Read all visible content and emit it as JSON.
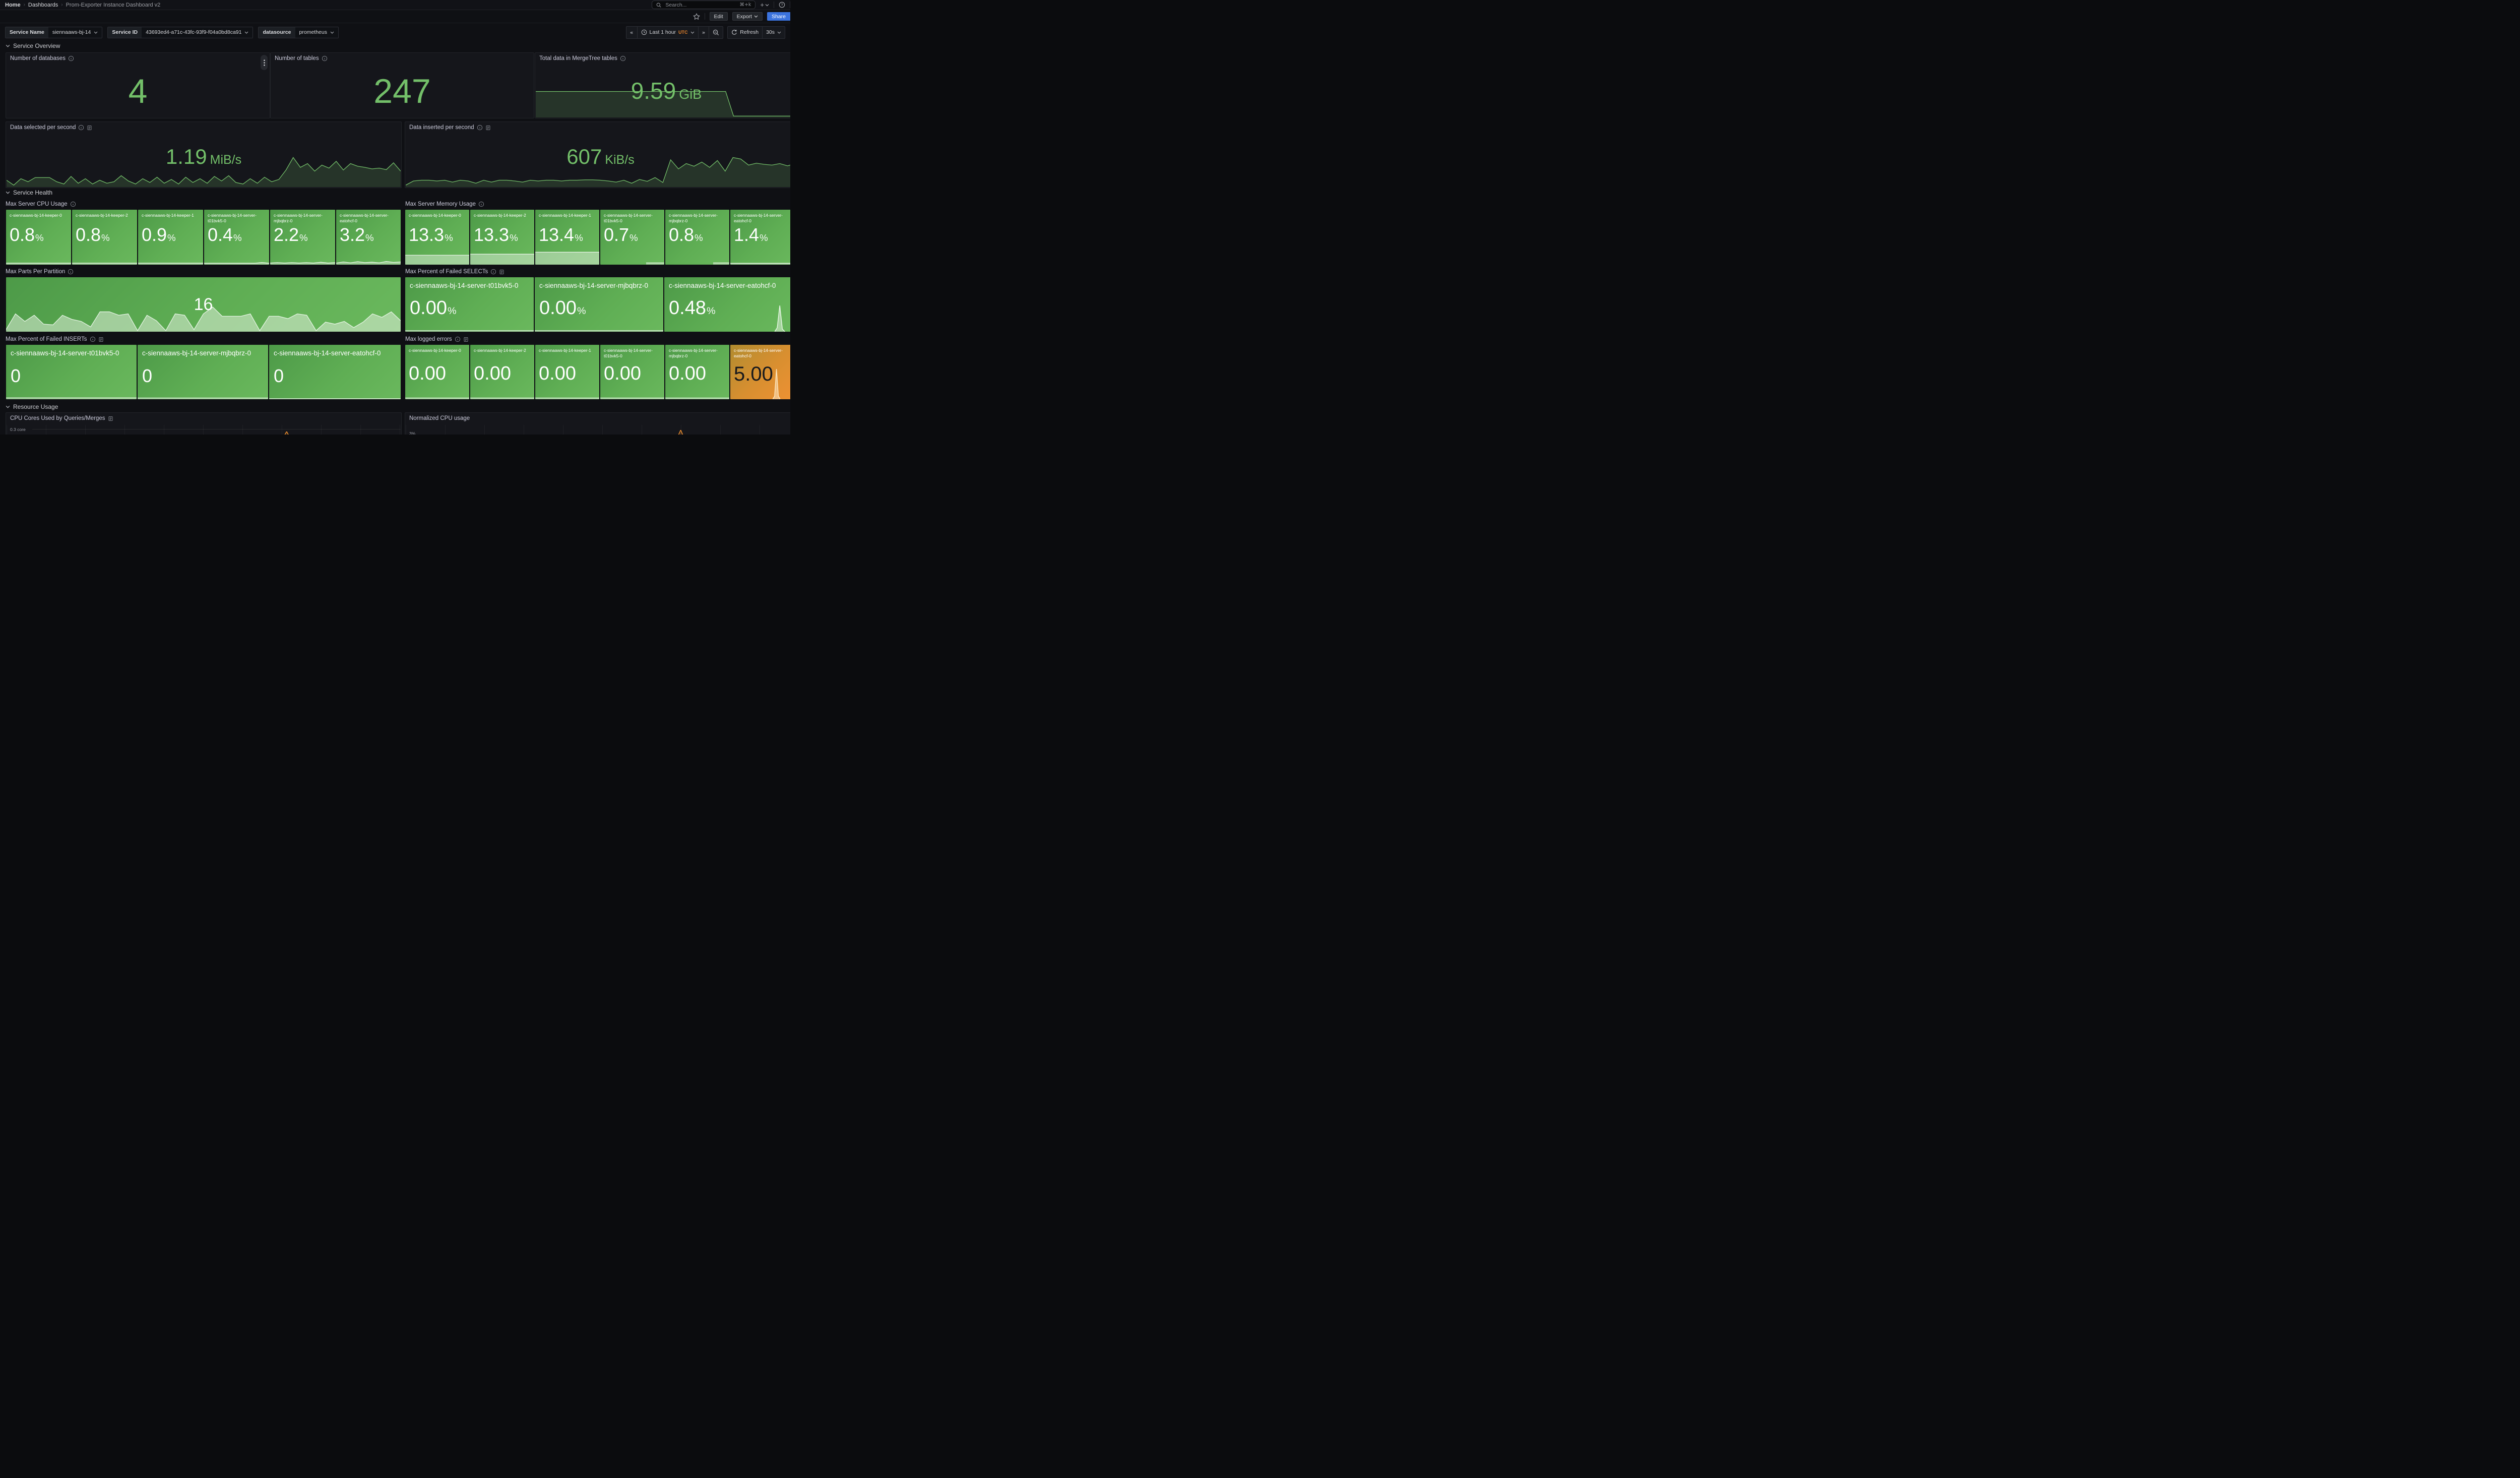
{
  "nav": {
    "breadcrumb": [
      "Home",
      "Dashboards",
      "Prom-Exporter Instance Dashboard v2"
    ],
    "search_placeholder": "Search...",
    "search_shortcut": "⌘+k"
  },
  "toolbar": {
    "edit_label": "Edit",
    "export_label": "Export",
    "share_label": "Share"
  },
  "variables": {
    "service_name": {
      "label": "Service Name",
      "value": "siennaaws-bj-14"
    },
    "service_id": {
      "label": "Service ID",
      "value": "43693ed4-a71c-43fc-93f9-f04a0bd8ca91"
    },
    "datasource": {
      "label": "datasource",
      "value": "prometheus"
    }
  },
  "timepicker": {
    "range_label": "Last 1 hour",
    "timezone": "UTC",
    "refresh_label": "Refresh",
    "refresh_interval": "30s"
  },
  "sections": {
    "overview": {
      "title": "Service Overview"
    },
    "health": {
      "title": "Service Health"
    },
    "resource": {
      "title": "Resource Usage"
    }
  },
  "colors": {
    "green": "#73BF69",
    "tile_green": "#5fae54",
    "tile_orange": "#d98f30",
    "accent_blue": "#3b73de",
    "utc_orange": "#e8842b"
  },
  "panels": {
    "databases": {
      "title": "Number of databases",
      "value": "4"
    },
    "tables": {
      "title": "Number of tables",
      "value": "247"
    },
    "mergetree": {
      "title": "Total data in MergeTree tables",
      "value": "9.59",
      "unit": "GiB",
      "spark": [
        0.56,
        0.56,
        0.56,
        0.56,
        0.56,
        0.56,
        0.56,
        0.56,
        0.56,
        0.56,
        0.56,
        0.56,
        0.56,
        0.56,
        0.56,
        0.56,
        0.56,
        0.56,
        0.56,
        0.56,
        0.56,
        0.56,
        0.56,
        0.56,
        0.56,
        0.03,
        0.03,
        0.03,
        0.03,
        0.03,
        0.03,
        0.03,
        0.03,
        0.03
      ]
    },
    "selected": {
      "title": "Data selected per second",
      "value": "1.19",
      "unit": "MiB/s",
      "spark": [
        0.18,
        0.05,
        0.22,
        0.14,
        0.25,
        0.25,
        0.25,
        0.14,
        0.08,
        0.28,
        0.1,
        0.22,
        0.08,
        0.18,
        0.1,
        0.14,
        0.3,
        0.16,
        0.08,
        0.22,
        0.12,
        0.26,
        0.1,
        0.2,
        0.08,
        0.26,
        0.12,
        0.22,
        0.1,
        0.28,
        0.16,
        0.3,
        0.12,
        0.08,
        0.22,
        0.1,
        0.26,
        0.14,
        0.2,
        0.45,
        0.78,
        0.52,
        0.62,
        0.42,
        0.58,
        0.5,
        0.68,
        0.45,
        0.62,
        0.55,
        0.52,
        0.48,
        0.5,
        0.46,
        0.64,
        0.42
      ]
    },
    "inserted": {
      "title": "Data inserted per second",
      "value": "607",
      "unit": "KiB/s",
      "spark": [
        0.05,
        0.16,
        0.18,
        0.18,
        0.16,
        0.18,
        0.13,
        0.18,
        0.16,
        0.1,
        0.18,
        0.13,
        0.18,
        0.18,
        0.16,
        0.13,
        0.18,
        0.16,
        0.18,
        0.18,
        0.16,
        0.18,
        0.18,
        0.19,
        0.19,
        0.18,
        0.16,
        0.13,
        0.18,
        0.1,
        0.2,
        0.15,
        0.25,
        0.12,
        0.72,
        0.48,
        0.62,
        0.55,
        0.66,
        0.52,
        0.7,
        0.42,
        0.78,
        0.74,
        0.58,
        0.63,
        0.6,
        0.58,
        0.62,
        0.56,
        0.62
      ]
    },
    "cpu": {
      "title": "Max Server CPU Usage",
      "tiles": [
        {
          "name": "c-siennaaws-bj-14-keeper-0",
          "value": "0.8",
          "unit": "%",
          "spark": [
            0.5,
            0.5,
            0.5,
            0.5,
            0.5,
            0.5,
            0.5,
            0.5,
            0.5,
            0.5
          ]
        },
        {
          "name": "c-siennaaws-bj-14-keeper-2",
          "value": "0.8",
          "unit": "%",
          "spark": [
            0.5,
            0.5,
            0.5,
            0.5,
            0.5,
            0.5,
            0.5,
            0.5,
            0.5,
            0.5
          ]
        },
        {
          "name": "c-siennaaws-bj-14-keeper-1",
          "value": "0.9",
          "unit": "%",
          "spark": [
            0.5,
            0.5,
            0.5,
            0.5,
            0.5,
            0.5,
            0.5,
            0.5,
            0.5,
            0.5
          ]
        },
        {
          "name": "c-siennaaws-bj-14-server-t01bvk5-0",
          "value": "0.4",
          "unit": "%",
          "spark": [
            0.4,
            0.4,
            0.4,
            0.4,
            0.4,
            0.4,
            0.4,
            0.4,
            0.6,
            0.4
          ]
        },
        {
          "name": "c-siennaaws-bj-14-server-mjbqbrz-0",
          "value": "2.2",
          "unit": "%",
          "spark": [
            0.4,
            0.5,
            0.4,
            0.5,
            0.4,
            0.5,
            0.4,
            0.6,
            0.4,
            0.5
          ]
        },
        {
          "name": "c-siennaaws-bj-14-server-eatohcf-0",
          "value": "3.2",
          "unit": "%",
          "spark": [
            0.35,
            0.6,
            0.4,
            0.65,
            0.45,
            0.55,
            0.4,
            0.7,
            0.5,
            0.6
          ]
        }
      ]
    },
    "memory": {
      "title": "Max Server Memory Usage",
      "tiles": [
        {
          "name": "c-siennaaws-bj-14-keeper-0",
          "value": "13.3",
          "unit": "%",
          "spark": [
            0.72,
            0.72,
            0.72,
            0.72,
            0.72,
            0.72,
            0.72,
            0.72,
            0.72,
            0.72
          ]
        },
        {
          "name": "c-siennaaws-bj-14-keeper-2",
          "value": "13.3",
          "unit": "%",
          "spark": [
            0.8,
            0.8,
            0.8,
            0.8,
            0.8,
            0.8,
            0.8,
            0.8,
            0.8,
            0.8
          ]
        },
        {
          "name": "c-siennaaws-bj-14-keeper-1",
          "value": "13.4",
          "unit": "%",
          "spark": [
            0.95,
            0.95,
            0.95,
            0.95,
            0.95,
            0.95,
            0.95,
            0.95,
            0.95,
            0.95
          ]
        },
        {
          "name": "c-siennaaws-bj-14-server-t01bvk5-0",
          "value": "0.7",
          "unit": "%",
          "spark": [
            0.5,
            0.5,
            0.5,
            0.5
          ]
        },
        {
          "name": "c-siennaaws-bj-14-server-mjbqbrz-0",
          "value": "0.8",
          "unit": "%",
          "spark": [
            0.5,
            0.5,
            0.5,
            0.5
          ]
        },
        {
          "name": "c-siennaaws-bj-14-server-eatohcf-0",
          "value": "1.4",
          "unit": "%",
          "spark": [
            0.45,
            0.45,
            0.45,
            0.45,
            0.45,
            0.45,
            0.45,
            0.45,
            0.45,
            0.45
          ]
        }
      ]
    },
    "parts": {
      "title": "Max Parts Per Partition",
      "value": "16",
      "spark": [
        0.06,
        0.52,
        0.3,
        0.48,
        0.22,
        0.2,
        0.48,
        0.36,
        0.3,
        0.14,
        0.58,
        0.58,
        0.48,
        0.52,
        0.03,
        0.48,
        0.32,
        0.03,
        0.52,
        0.48,
        0.06,
        0.52,
        0.72,
        0.45,
        0.45,
        0.45,
        0.52,
        0.03,
        0.45,
        0.45,
        0.38,
        0.52,
        0.48,
        0.03,
        0.28,
        0.22,
        0.3,
        0.12,
        0.28,
        0.52,
        0.42,
        0.58,
        0.32
      ]
    },
    "failed_selects": {
      "title": "Max Percent of Failed SELECTs",
      "tiles": [
        {
          "name": "c-siennaaws-bj-14-server-t01bvk5-0",
          "value": "0.00",
          "unit": "%",
          "spark": [
            0.5,
            0.5,
            0.5,
            0.5
          ]
        },
        {
          "name": "c-siennaaws-bj-14-server-mjbqbrz-0",
          "value": "0.00",
          "unit": "%",
          "spark": [
            0.5,
            0.5,
            0.5,
            0.5
          ]
        },
        {
          "name": "c-siennaaws-bj-14-server-eatohcf-0",
          "value": "0.48",
          "unit": "%",
          "spike": [
            0,
            0.15,
            1,
            0.1,
            0
          ]
        }
      ]
    },
    "failed_inserts": {
      "title": "Max Percent of Failed INSERTs",
      "tiles": [
        {
          "name": "c-siennaaws-bj-14-server-t01bvk5-0",
          "value": "0",
          "spark": [
            0.55,
            0.55,
            0.55,
            0.55
          ]
        },
        {
          "name": "c-siennaaws-bj-14-server-mjbqbrz-0",
          "value": "0",
          "spark": [
            0.5,
            0.5,
            0.5,
            0.5
          ]
        },
        {
          "name": "c-siennaaws-bj-14-server-eatohcf-0",
          "value": "0",
          "spark": [
            0.3,
            0.3,
            0.3,
            0.3
          ]
        }
      ]
    },
    "logged_errors": {
      "title": "Max logged errors",
      "tiles": [
        {
          "name": "c-siennaaws-bj-14-keeper-0",
          "value": "0.00",
          "spark": [
            0.5,
            0.5,
            0.5,
            0.5
          ]
        },
        {
          "name": "c-siennaaws-bj-14-keeper-2",
          "value": "0.00",
          "spark": [
            0.5,
            0.5,
            0.5,
            0.5
          ]
        },
        {
          "name": "c-siennaaws-bj-14-keeper-1",
          "value": "0.00",
          "spark": [
            0.5,
            0.5,
            0.5,
            0.5
          ]
        },
        {
          "name": "c-siennaaws-bj-14-server-t01bvk5-0",
          "value": "0.00",
          "spark": [
            0.5,
            0.5,
            0.5,
            0.5
          ]
        },
        {
          "name": "c-siennaaws-bj-14-server-mjbqbrz-0",
          "value": "0.00",
          "spark": [
            0.5,
            0.5,
            0.5,
            0.5
          ]
        },
        {
          "name": "c-siennaaws-bj-14-server-eatohcf-0",
          "value": "5.00",
          "spike": [
            0,
            0.1,
            1,
            0.1,
            0
          ]
        }
      ]
    },
    "cpu_cores": {
      "title": "CPU Cores Used by Queries/Merges",
      "ytick": "0.3 core",
      "spike": [
        0,
        0.2,
        1,
        0.15,
        0
      ]
    },
    "normalized_cpu": {
      "title": "Normalized CPU usage",
      "ytick": "3%",
      "spike": [
        0,
        0.2,
        1,
        0.15,
        0
      ]
    }
  }
}
